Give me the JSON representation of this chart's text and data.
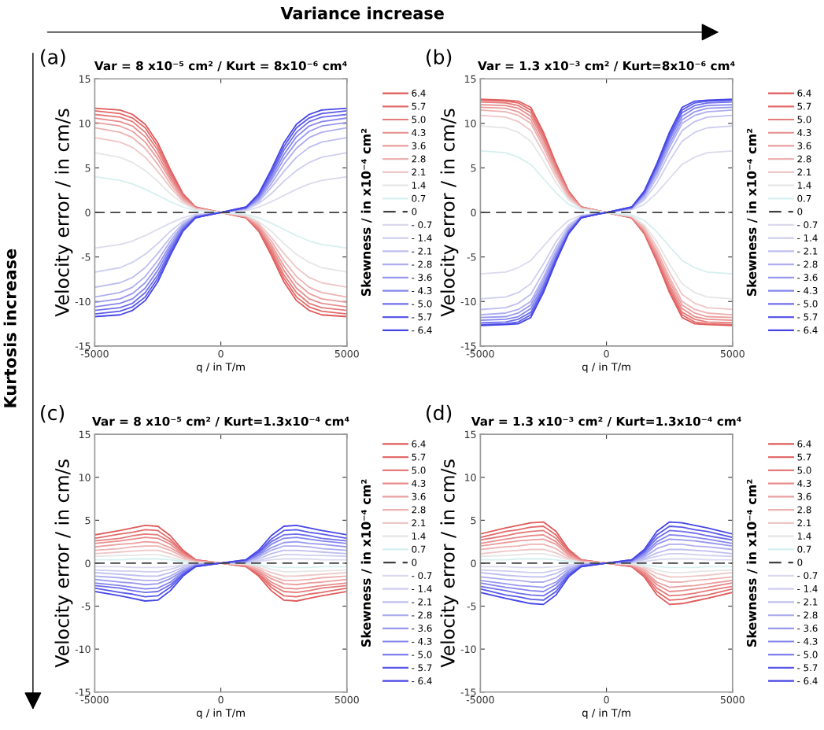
{
  "chart_data": [
    {
      "type": "line",
      "title": "Var = 8 x10⁻⁵ cm² / Kurt = 8x10⁻⁶ cm⁴",
      "xlabel": "q / in T/m",
      "ylabel": "Velocity error / in cm/s",
      "legend_title": "Skewness / in x10⁻⁴ cm²",
      "annotations": [
        "(a)",
        "Variance increase",
        "Kurtosis increase"
      ],
      "xlim": [
        -5000,
        5000
      ],
      "ylim": [
        -15,
        15
      ],
      "xticks": [
        -5000,
        0,
        5000
      ],
      "yticks": [
        -15,
        -10,
        -5,
        0,
        5,
        10,
        15
      ],
      "grid": false,
      "legend": "right",
      "line_style": "solid",
      "marker": "none",
      "x": [
        -5000,
        -4000,
        -3500,
        -3000,
        -2500,
        -2000,
        -1500,
        -1000,
        0,
        1000,
        1500,
        2000,
        2500,
        3000,
        3500,
        4000,
        5000
      ],
      "series": [
        {
          "name": "6.4",
          "color": "#e05a5a",
          "values": [
            11.7,
            11.5,
            11.0,
            9.9,
            7.8,
            4.8,
            2.1,
            0.6,
            0,
            -0.6,
            -2.1,
            -4.8,
            -7.8,
            -9.9,
            -11.0,
            -11.5,
            -11.7
          ]
        },
        {
          "name": "5.7",
          "color": "#e36a6a",
          "values": [
            11.4,
            11.1,
            10.6,
            9.5,
            7.4,
            4.5,
            2.0,
            0.6,
            0,
            -0.6,
            -2.0,
            -4.5,
            -7.4,
            -9.5,
            -10.6,
            -11.1,
            -11.4
          ]
        },
        {
          "name": "5.0",
          "color": "#e57a7a",
          "values": [
            11.0,
            10.7,
            10.2,
            9.0,
            7.0,
            4.2,
            1.8,
            0.5,
            0,
            -0.5,
            -1.8,
            -4.2,
            -7.0,
            -9.0,
            -10.2,
            -10.7,
            -11.0
          ]
        },
        {
          "name": "4.3",
          "color": "#e88c8c",
          "values": [
            10.6,
            10.2,
            9.7,
            8.5,
            6.5,
            3.9,
            1.7,
            0.5,
            0,
            -0.5,
            -1.7,
            -3.9,
            -6.5,
            -8.5,
            -9.7,
            -10.2,
            -10.6
          ]
        },
        {
          "name": "3.6",
          "color": "#eb9e9e",
          "values": [
            10.1,
            9.7,
            9.1,
            7.9,
            6.0,
            3.6,
            1.5,
            0.5,
            0,
            -0.5,
            -1.5,
            -3.6,
            -6.0,
            -7.9,
            -9.1,
            -9.7,
            -10.1
          ]
        },
        {
          "name": "2.8",
          "color": "#eeb2b2",
          "values": [
            9.5,
            9.0,
            8.4,
            7.2,
            5.4,
            3.2,
            1.4,
            0.4,
            0,
            -0.4,
            -1.4,
            -3.2,
            -5.4,
            -7.2,
            -8.4,
            -9.0,
            -9.5
          ]
        },
        {
          "name": "2.1",
          "color": "#efc6c6",
          "values": [
            8.4,
            7.9,
            7.3,
            6.2,
            4.6,
            2.8,
            1.2,
            0.4,
            0,
            -0.4,
            -1.2,
            -2.8,
            -4.6,
            -6.2,
            -7.3,
            -7.9,
            -8.4
          ]
        },
        {
          "name": "1.4",
          "color": "#e6e6e6",
          "values": [
            6.7,
            6.2,
            5.6,
            4.7,
            3.5,
            2.1,
            1.0,
            0.3,
            0,
            -0.3,
            -1.0,
            -2.1,
            -3.5,
            -4.7,
            -5.6,
            -6.2,
            -6.7
          ]
        },
        {
          "name": "0.7",
          "color": "#d6efef",
          "values": [
            4.0,
            3.6,
            3.2,
            2.6,
            1.9,
            1.2,
            0.6,
            0.2,
            0,
            -0.2,
            -0.6,
            -1.2,
            -1.9,
            -2.6,
            -3.2,
            -3.6,
            -4.0
          ]
        },
        {
          "name": "0",
          "color": "#404040",
          "line_style": "dashed",
          "values": [
            0,
            0,
            0,
            0,
            0,
            0,
            0,
            0,
            0,
            0,
            0,
            0,
            0,
            0,
            0,
            0,
            0
          ]
        },
        {
          "name": "- 0.7",
          "color": "#dadaee",
          "values": [
            -4.0,
            -3.6,
            -3.2,
            -2.6,
            -1.9,
            -1.2,
            -0.6,
            -0.2,
            0,
            0.2,
            0.6,
            1.2,
            1.9,
            2.6,
            3.2,
            3.6,
            4.0
          ]
        },
        {
          "name": "- 1.4",
          "color": "#cecef0",
          "values": [
            -6.7,
            -6.2,
            -5.6,
            -4.7,
            -3.5,
            -2.1,
            -1.0,
            -0.3,
            0,
            0.3,
            1.0,
            2.1,
            3.5,
            4.7,
            5.6,
            6.2,
            6.7
          ]
        },
        {
          "name": "- 2.1",
          "color": "#bebef0",
          "values": [
            -8.4,
            -7.9,
            -7.3,
            -6.2,
            -4.6,
            -2.8,
            -1.2,
            -0.4,
            0,
            0.4,
            1.2,
            2.8,
            4.6,
            6.2,
            7.3,
            7.9,
            8.4
          ]
        },
        {
          "name": "- 2.8",
          "color": "#adadf0",
          "values": [
            -9.5,
            -9.0,
            -8.4,
            -7.2,
            -5.4,
            -3.2,
            -1.4,
            -0.4,
            0,
            0.4,
            1.4,
            3.2,
            5.4,
            7.2,
            8.4,
            9.0,
            9.5
          ]
        },
        {
          "name": "- 3.6",
          "color": "#9898ef",
          "values": [
            -10.1,
            -9.7,
            -9.1,
            -7.9,
            -6.0,
            -3.6,
            -1.5,
            -0.5,
            0,
            0.5,
            1.5,
            3.6,
            6.0,
            7.9,
            9.1,
            9.7,
            10.1
          ]
        },
        {
          "name": "- 4.3",
          "color": "#8585ee",
          "values": [
            -10.6,
            -10.2,
            -9.7,
            -8.5,
            -6.5,
            -3.9,
            -1.7,
            -0.5,
            0,
            0.5,
            1.7,
            3.9,
            6.5,
            8.5,
            9.7,
            10.2,
            10.6
          ]
        },
        {
          "name": "- 5.0",
          "color": "#6e6eec",
          "values": [
            -11.0,
            -10.7,
            -10.2,
            -9.0,
            -7.0,
            -4.2,
            -1.8,
            -0.5,
            0,
            0.5,
            1.8,
            4.2,
            7.0,
            9.0,
            10.2,
            10.7,
            11.0
          ]
        },
        {
          "name": "- 5.7",
          "color": "#5959ea",
          "values": [
            -11.4,
            -11.1,
            -10.6,
            -9.5,
            -7.4,
            -4.5,
            -2.0,
            -0.6,
            0,
            0.6,
            2.0,
            4.5,
            7.4,
            9.5,
            10.6,
            11.1,
            11.4
          ]
        },
        {
          "name": "- 6.4",
          "color": "#4545e6",
          "values": [
            -11.7,
            -11.5,
            -11.0,
            -9.9,
            -7.8,
            -4.8,
            -2.1,
            -0.6,
            0,
            0.6,
            2.1,
            4.8,
            7.8,
            9.9,
            11.0,
            11.5,
            11.7
          ]
        }
      ]
    },
    {
      "type": "line",
      "title": "Var = 1.3 x10⁻³ cm² / Kurt=8x10⁻⁶ cm⁴",
      "xlabel": "q / in T/m",
      "ylabel": "Velocity error / in cm/s",
      "legend_title": "Skewness / in x10⁻⁴ cm²",
      "annotations": [
        "(b)"
      ],
      "xlim": [
        -5000,
        5000
      ],
      "ylim": [
        -15,
        15
      ],
      "xticks": [
        -5000,
        0,
        5000
      ],
      "yticks": [
        -15,
        -10,
        -5,
        0,
        5,
        10,
        15
      ],
      "grid": false,
      "legend": "right",
      "line_style": "solid",
      "marker": "none",
      "x": [
        -5000,
        -4000,
        -3500,
        -3000,
        -2500,
        -2000,
        -1500,
        -1000,
        0,
        1000,
        1500,
        2000,
        2500,
        3000,
        3500,
        4000,
        5000
      ],
      "series": [
        {
          "name": "6.4",
          "color": "#e05a5a",
          "values": [
            12.7,
            12.6,
            12.5,
            11.8,
            9.0,
            5.5,
            2.4,
            0.6,
            0,
            -0.6,
            -2.4,
            -5.5,
            -9.0,
            -11.8,
            -12.5,
            -12.6,
            -12.7
          ]
        },
        {
          "name": "5.7",
          "color": "#e36a6a",
          "values": [
            12.6,
            12.5,
            12.3,
            11.5,
            8.7,
            5.3,
            2.3,
            0.6,
            0,
            -0.6,
            -2.3,
            -5.3,
            -8.7,
            -11.5,
            -12.3,
            -12.5,
            -12.6
          ]
        },
        {
          "name": "5.0",
          "color": "#e57a7a",
          "values": [
            12.4,
            12.3,
            12.0,
            11.2,
            8.4,
            5.1,
            2.2,
            0.6,
            0,
            -0.6,
            -2.2,
            -5.1,
            -8.4,
            -11.2,
            -12.0,
            -12.3,
            -12.4
          ]
        },
        {
          "name": "4.3",
          "color": "#e88c8c",
          "values": [
            12.1,
            12.0,
            11.7,
            10.8,
            8.1,
            4.9,
            2.1,
            0.5,
            0,
            -0.5,
            -2.1,
            -4.9,
            -8.1,
            -10.8,
            -11.7,
            -12.0,
            -12.1
          ]
        },
        {
          "name": "3.6",
          "color": "#eb9e9e",
          "values": [
            11.8,
            11.7,
            11.3,
            10.4,
            7.7,
            4.6,
            2.0,
            0.5,
            0,
            -0.5,
            -2.0,
            -4.6,
            -7.7,
            -10.4,
            -11.3,
            -11.7,
            -11.8
          ]
        },
        {
          "name": "2.8",
          "color": "#eeb2b2",
          "values": [
            11.5,
            11.3,
            10.9,
            10.0,
            7.3,
            4.3,
            1.8,
            0.5,
            0,
            -0.5,
            -1.8,
            -4.3,
            -7.3,
            -10.0,
            -10.9,
            -11.3,
            -11.5
          ]
        },
        {
          "name": "2.1",
          "color": "#efc6c6",
          "values": [
            10.9,
            10.7,
            10.2,
            9.2,
            6.7,
            3.9,
            1.6,
            0.4,
            0,
            -0.4,
            -1.6,
            -3.9,
            -6.7,
            -9.2,
            -10.2,
            -10.7,
            -10.9
          ]
        },
        {
          "name": "1.4",
          "color": "#e6e6e6",
          "values": [
            9.7,
            9.5,
            9.0,
            8.0,
            5.8,
            3.3,
            1.4,
            0.4,
            0,
            -0.4,
            -1.4,
            -3.3,
            -5.8,
            -8.0,
            -9.0,
            -9.5,
            -9.7
          ]
        },
        {
          "name": "0.7",
          "color": "#d6efef",
          "values": [
            6.9,
            6.7,
            6.2,
            5.4,
            3.8,
            2.2,
            0.9,
            0.3,
            0,
            -0.3,
            -0.9,
            -2.2,
            -3.8,
            -5.4,
            -6.2,
            -6.7,
            -6.9
          ]
        },
        {
          "name": "0",
          "color": "#404040",
          "line_style": "dashed",
          "values": [
            0,
            0,
            0,
            0,
            0,
            0,
            0,
            0,
            0,
            0,
            0,
            0,
            0,
            0,
            0,
            0,
            0
          ]
        },
        {
          "name": "- 0.7",
          "color": "#dadaee",
          "values": [
            -6.9,
            -6.7,
            -6.2,
            -5.4,
            -3.8,
            -2.2,
            -0.9,
            -0.3,
            0,
            0.3,
            0.9,
            2.2,
            3.8,
            5.4,
            6.2,
            6.7,
            6.9
          ]
        },
        {
          "name": "- 1.4",
          "color": "#cecef0",
          "values": [
            -9.7,
            -9.5,
            -9.0,
            -8.0,
            -5.8,
            -3.3,
            -1.4,
            -0.4,
            0,
            0.4,
            1.4,
            3.3,
            5.8,
            8.0,
            9.0,
            9.5,
            9.7
          ]
        },
        {
          "name": "- 2.1",
          "color": "#bebef0",
          "values": [
            -10.9,
            -10.7,
            -10.2,
            -9.2,
            -6.7,
            -3.9,
            -1.6,
            -0.4,
            0,
            0.4,
            1.6,
            3.9,
            6.7,
            9.2,
            10.2,
            10.7,
            10.9
          ]
        },
        {
          "name": "- 2.8",
          "color": "#adadf0",
          "values": [
            -11.5,
            -11.3,
            -10.9,
            -10.0,
            -7.3,
            -4.3,
            -1.8,
            -0.5,
            0,
            0.5,
            1.8,
            4.3,
            7.3,
            10.0,
            10.9,
            11.3,
            11.5
          ]
        },
        {
          "name": "- 3.6",
          "color": "#9898ef",
          "values": [
            -11.8,
            -11.7,
            -11.3,
            -10.4,
            -7.7,
            -4.6,
            -2.0,
            -0.5,
            0,
            0.5,
            2.0,
            4.6,
            7.7,
            10.4,
            11.3,
            11.7,
            11.8
          ]
        },
        {
          "name": "- 4.3",
          "color": "#8585ee",
          "values": [
            -12.1,
            -12.0,
            -11.7,
            -10.8,
            -8.1,
            -4.9,
            -2.1,
            -0.5,
            0,
            0.5,
            2.1,
            4.9,
            8.1,
            10.8,
            11.7,
            12.0,
            12.1
          ]
        },
        {
          "name": "- 5.0",
          "color": "#6e6eec",
          "values": [
            -12.4,
            -12.3,
            -12.0,
            -11.2,
            -8.4,
            -5.1,
            -2.2,
            -0.6,
            0,
            0.6,
            2.2,
            5.1,
            8.4,
            11.2,
            12.0,
            12.3,
            12.4
          ]
        },
        {
          "name": "- 5.7",
          "color": "#5959ea",
          "values": [
            -12.6,
            -12.5,
            -12.3,
            -11.5,
            -8.7,
            -5.3,
            -2.3,
            -0.6,
            0,
            0.6,
            2.3,
            5.3,
            8.7,
            11.5,
            12.3,
            12.5,
            12.6
          ]
        },
        {
          "name": "- 6.4",
          "color": "#4545e6",
          "values": [
            -12.7,
            -12.6,
            -12.5,
            -11.8,
            -9.0,
            -5.5,
            -2.4,
            -0.6,
            0,
            0.6,
            2.4,
            5.5,
            9.0,
            11.8,
            12.5,
            12.6,
            12.7
          ]
        }
      ]
    },
    {
      "type": "line",
      "title": "Var = 8 x10⁻⁵ cm² / Kurt=1.3x10⁻⁴ cm⁴",
      "xlabel": "q / in T/m",
      "ylabel": "Velocity error / in cm/s",
      "legend_title": "Skewness / in x10⁻⁴ cm²",
      "annotations": [
        "(c)"
      ],
      "xlim": [
        -5000,
        5000
      ],
      "ylim": [
        -15,
        15
      ],
      "xticks": [
        -5000,
        0,
        5000
      ],
      "yticks": [
        -15,
        -10,
        -5,
        0,
        5,
        10,
        15
      ],
      "grid": false,
      "legend": "right",
      "line_style": "solid",
      "marker": "none",
      "x": [
        -5000,
        -4000,
        -3500,
        -3000,
        -2500,
        -2000,
        -1500,
        -1000,
        0,
        1000,
        1500,
        2000,
        2500,
        3000,
        3500,
        4000,
        5000
      ],
      "series": [
        {
          "name": "6.4",
          "color": "#e05a5a",
          "values": [
            3.3,
            3.8,
            4.1,
            4.4,
            4.3,
            3.2,
            1.5,
            0.4,
            0,
            -0.4,
            -1.5,
            -3.2,
            -4.3,
            -4.4,
            -4.1,
            -3.8,
            -3.3
          ]
        },
        {
          "name": "5.7",
          "color": "#e36a6a",
          "values": [
            2.9,
            3.4,
            3.6,
            3.9,
            3.8,
            2.8,
            1.3,
            0.4,
            0,
            -0.4,
            -1.3,
            -2.8,
            -3.8,
            -3.9,
            -3.6,
            -3.4,
            -2.9
          ]
        },
        {
          "name": "5.0",
          "color": "#e57a7a",
          "values": [
            2.6,
            2.9,
            3.2,
            3.4,
            3.3,
            2.5,
            1.2,
            0.3,
            0,
            -0.3,
            -1.2,
            -2.5,
            -3.3,
            -3.4,
            -3.2,
            -2.9,
            -2.6
          ]
        },
        {
          "name": "4.3",
          "color": "#e88c8c",
          "values": [
            2.3,
            2.6,
            2.8,
            3.0,
            2.9,
            2.2,
            1.0,
            0.3,
            0,
            -0.3,
            -1.0,
            -2.2,
            -2.9,
            -3.0,
            -2.8,
            -2.6,
            -2.3
          ]
        },
        {
          "name": "3.6",
          "color": "#eb9e9e",
          "values": [
            1.9,
            2.2,
            2.3,
            2.5,
            2.4,
            1.8,
            0.9,
            0.2,
            0,
            -0.2,
            -0.9,
            -1.8,
            -2.4,
            -2.5,
            -2.3,
            -2.2,
            -1.9
          ]
        },
        {
          "name": "2.8",
          "color": "#eeb2b2",
          "values": [
            1.5,
            1.7,
            1.9,
            2.0,
            2.0,
            1.5,
            0.7,
            0.2,
            0,
            -0.2,
            -0.7,
            -1.5,
            -2.0,
            -2.0,
            -1.9,
            -1.7,
            -1.5
          ]
        },
        {
          "name": "2.1",
          "color": "#efc6c6",
          "values": [
            1.1,
            1.3,
            1.4,
            1.5,
            1.5,
            1.1,
            0.5,
            0.1,
            0,
            -0.1,
            -0.5,
            -1.1,
            -1.5,
            -1.5,
            -1.4,
            -1.3,
            -1.1
          ]
        },
        {
          "name": "1.4",
          "color": "#e6e6e6",
          "values": [
            0.8,
            0.9,
            0.9,
            1.0,
            1.0,
            0.7,
            0.3,
            0.1,
            0,
            -0.1,
            -0.3,
            -0.7,
            -1.0,
            -1.0,
            -0.9,
            -0.9,
            -0.8
          ]
        },
        {
          "name": "0.7",
          "color": "#d6efef",
          "values": [
            0.4,
            0.4,
            0.5,
            0.5,
            0.5,
            0.4,
            0.2,
            0,
            0,
            0,
            -0.2,
            -0.4,
            -0.5,
            -0.5,
            -0.5,
            -0.4,
            -0.4
          ]
        },
        {
          "name": "0",
          "color": "#404040",
          "line_style": "dashed",
          "values": [
            0,
            0,
            0,
            0,
            0,
            0,
            0,
            0,
            0,
            0,
            0,
            0,
            0,
            0,
            0,
            0,
            0
          ]
        },
        {
          "name": "- 0.7",
          "color": "#dadaee",
          "values": [
            -0.4,
            -0.4,
            -0.5,
            -0.5,
            -0.5,
            -0.4,
            -0.2,
            0,
            0,
            0,
            0.2,
            0.4,
            0.5,
            0.5,
            0.5,
            0.4,
            0.4
          ]
        },
        {
          "name": "- 1.4",
          "color": "#cecef0",
          "values": [
            -0.8,
            -0.9,
            -0.9,
            -1.0,
            -1.0,
            -0.7,
            -0.3,
            -0.1,
            0,
            0.1,
            0.3,
            0.7,
            1.0,
            1.0,
            0.9,
            0.9,
            0.8
          ]
        },
        {
          "name": "- 2.1",
          "color": "#bebef0",
          "values": [
            -1.1,
            -1.3,
            -1.4,
            -1.5,
            -1.5,
            -1.1,
            -0.5,
            -0.1,
            0,
            0.1,
            0.5,
            1.1,
            1.5,
            1.5,
            1.4,
            1.3,
            1.1
          ]
        },
        {
          "name": "- 2.8",
          "color": "#adadf0",
          "values": [
            -1.5,
            -1.7,
            -1.9,
            -2.0,
            -2.0,
            -1.5,
            -0.7,
            -0.2,
            0,
            0.2,
            0.7,
            1.5,
            2.0,
            2.0,
            1.9,
            1.7,
            1.5
          ]
        },
        {
          "name": "- 3.6",
          "color": "#9898ef",
          "values": [
            -1.9,
            -2.2,
            -2.3,
            -2.5,
            -2.4,
            -1.8,
            -0.9,
            -0.2,
            0,
            0.2,
            0.9,
            1.8,
            2.4,
            2.5,
            2.3,
            2.2,
            1.9
          ]
        },
        {
          "name": "- 4.3",
          "color": "#8585ee",
          "values": [
            -2.3,
            -2.6,
            -2.8,
            -3.0,
            -2.9,
            -2.2,
            -1.0,
            -0.3,
            0,
            0.3,
            1.0,
            2.2,
            2.9,
            3.0,
            2.8,
            2.6,
            2.3
          ]
        },
        {
          "name": "- 5.0",
          "color": "#6e6eec",
          "values": [
            -2.6,
            -2.9,
            -3.2,
            -3.4,
            -3.3,
            -2.5,
            -1.2,
            -0.3,
            0,
            0.3,
            1.2,
            2.5,
            3.3,
            3.4,
            3.2,
            2.9,
            2.6
          ]
        },
        {
          "name": "- 5.7",
          "color": "#5959ea",
          "values": [
            -2.9,
            -3.4,
            -3.6,
            -3.9,
            -3.8,
            -2.8,
            -1.3,
            -0.4,
            0,
            0.4,
            1.3,
            2.8,
            3.8,
            3.9,
            3.6,
            3.4,
            2.9
          ]
        },
        {
          "name": "- 6.4",
          "color": "#4545e6",
          "values": [
            -3.3,
            -3.8,
            -4.1,
            -4.4,
            -4.3,
            -3.2,
            -1.5,
            -0.4,
            0,
            0.4,
            1.5,
            3.2,
            4.3,
            4.4,
            4.1,
            3.8,
            3.3
          ]
        }
      ]
    },
    {
      "type": "line",
      "title": "Var = 1.3 x10⁻³ cm² / Kurt=1.3x10⁻⁴ cm⁴",
      "xlabel": "q / in T/m",
      "ylabel": "Velocity error / in cm/s",
      "legend_title": "Skewness / in x10⁻⁴ cm²",
      "annotations": [
        "(d)"
      ],
      "xlim": [
        -5000,
        5000
      ],
      "ylim": [
        -15,
        15
      ],
      "xticks": [
        -5000,
        0,
        5000
      ],
      "yticks": [
        -15,
        -10,
        -5,
        0,
        5,
        10,
        15
      ],
      "grid": false,
      "legend": "right",
      "line_style": "solid",
      "marker": "none",
      "x": [
        -5000,
        -4000,
        -3500,
        -3000,
        -2500,
        -2000,
        -1500,
        -1000,
        0,
        1000,
        1500,
        2000,
        2500,
        3000,
        3500,
        4000,
        5000
      ],
      "series": [
        {
          "name": "6.4",
          "color": "#e05a5a",
          "values": [
            3.4,
            4.1,
            4.4,
            4.7,
            4.8,
            3.7,
            1.6,
            0.4,
            0,
            -0.4,
            -1.6,
            -3.7,
            -4.8,
            -4.7,
            -4.4,
            -4.1,
            -3.4
          ]
        },
        {
          "name": "5.7",
          "color": "#e36a6a",
          "values": [
            3.0,
            3.7,
            3.9,
            4.2,
            4.3,
            3.3,
            1.4,
            0.4,
            0,
            -0.4,
            -1.4,
            -3.3,
            -4.3,
            -4.2,
            -3.9,
            -3.7,
            -3.0
          ]
        },
        {
          "name": "5.0",
          "color": "#e57a7a",
          "values": [
            2.7,
            3.2,
            3.5,
            3.7,
            3.8,
            2.9,
            1.3,
            0.3,
            0,
            -0.3,
            -1.3,
            -2.9,
            -3.8,
            -3.7,
            -3.5,
            -3.2,
            -2.7
          ]
        },
        {
          "name": "4.3",
          "color": "#e88c8c",
          "values": [
            2.3,
            2.8,
            3.0,
            3.2,
            3.3,
            2.5,
            1.1,
            0.3,
            0,
            -0.3,
            -1.1,
            -2.5,
            -3.3,
            -3.2,
            -3.0,
            -2.8,
            -2.3
          ]
        },
        {
          "name": "3.6",
          "color": "#eb9e9e",
          "values": [
            2.0,
            2.4,
            2.6,
            2.7,
            2.8,
            2.2,
            0.9,
            0.2,
            0,
            -0.2,
            -0.9,
            -2.2,
            -2.8,
            -2.7,
            -2.6,
            -2.4,
            -2.0
          ]
        },
        {
          "name": "2.8",
          "color": "#eeb2b2",
          "values": [
            1.6,
            1.9,
            2.0,
            2.2,
            2.2,
            1.7,
            0.7,
            0.2,
            0,
            -0.2,
            -0.7,
            -1.7,
            -2.2,
            -2.2,
            -2.0,
            -1.9,
            -1.6
          ]
        },
        {
          "name": "2.1",
          "color": "#efc6c6",
          "values": [
            1.1,
            1.4,
            1.5,
            1.6,
            1.6,
            1.2,
            0.5,
            0.1,
            0,
            -0.1,
            -0.5,
            -1.2,
            -1.6,
            -1.6,
            -1.5,
            -1.4,
            -1.1
          ]
        },
        {
          "name": "1.4",
          "color": "#e6e6e6",
          "values": [
            0.8,
            0.9,
            1.0,
            1.1,
            1.1,
            0.8,
            0.4,
            0.1,
            0,
            -0.1,
            -0.4,
            -0.8,
            -1.1,
            -1.1,
            -1.0,
            -0.9,
            -0.8
          ]
        },
        {
          "name": "0.7",
          "color": "#d6efef",
          "values": [
            0.4,
            0.4,
            0.5,
            0.5,
            0.5,
            0.4,
            0.2,
            0,
            0,
            0,
            -0.2,
            -0.4,
            -0.5,
            -0.5,
            -0.5,
            -0.4,
            -0.4
          ]
        },
        {
          "name": "0",
          "color": "#404040",
          "line_style": "dashed",
          "values": [
            0,
            0,
            0,
            0,
            0,
            0,
            0,
            0,
            0,
            0,
            0,
            0,
            0,
            0,
            0,
            0,
            0
          ]
        },
        {
          "name": "- 0.7",
          "color": "#dadaee",
          "values": [
            -0.4,
            -0.4,
            -0.5,
            -0.5,
            -0.5,
            -0.4,
            -0.2,
            0,
            0,
            0,
            0.2,
            0.4,
            0.5,
            0.5,
            0.5,
            0.4,
            0.4
          ]
        },
        {
          "name": "- 1.4",
          "color": "#cecef0",
          "values": [
            -0.8,
            -0.9,
            -1.0,
            -1.1,
            -1.1,
            -0.8,
            -0.4,
            -0.1,
            0,
            0.1,
            0.4,
            0.8,
            1.1,
            1.1,
            1.0,
            0.9,
            0.8
          ]
        },
        {
          "name": "- 2.1",
          "color": "#bebef0",
          "values": [
            -1.1,
            -1.4,
            -1.5,
            -1.6,
            -1.6,
            -1.2,
            -0.5,
            -0.1,
            0,
            0.1,
            0.5,
            1.2,
            1.6,
            1.6,
            1.5,
            1.4,
            1.1
          ]
        },
        {
          "name": "- 2.8",
          "color": "#adadf0",
          "values": [
            -1.6,
            -1.9,
            -2.0,
            -2.2,
            -2.2,
            -1.7,
            -0.7,
            -0.2,
            0,
            0.2,
            0.7,
            1.7,
            2.2,
            2.2,
            2.0,
            1.9,
            1.6
          ]
        },
        {
          "name": "- 3.6",
          "color": "#9898ef",
          "values": [
            -2.0,
            -2.4,
            -2.6,
            -2.7,
            -2.8,
            -2.2,
            -0.9,
            -0.2,
            0,
            0.2,
            0.9,
            2.2,
            2.8,
            2.7,
            2.6,
            2.4,
            2.0
          ]
        },
        {
          "name": "- 4.3",
          "color": "#8585ee",
          "values": [
            -2.3,
            -2.8,
            -3.0,
            -3.2,
            -3.3,
            -2.5,
            -1.1,
            -0.3,
            0,
            0.3,
            1.1,
            2.5,
            3.3,
            3.2,
            3.0,
            2.8,
            2.3
          ]
        },
        {
          "name": "- 5.0",
          "color": "#6e6eec",
          "values": [
            -2.7,
            -3.2,
            -3.5,
            -3.7,
            -3.8,
            -2.9,
            -1.3,
            -0.3,
            0,
            0.3,
            1.3,
            2.9,
            3.8,
            3.7,
            3.5,
            3.2,
            2.7
          ]
        },
        {
          "name": "- 5.7",
          "color": "#5959ea",
          "values": [
            -3.0,
            -3.7,
            -3.9,
            -4.2,
            -4.3,
            -3.3,
            -1.4,
            -0.4,
            0,
            0.4,
            1.4,
            3.3,
            4.3,
            4.2,
            3.9,
            3.7,
            3.0
          ]
        },
        {
          "name": "- 6.4",
          "color": "#4545e6",
          "values": [
            -3.4,
            -4.1,
            -4.4,
            -4.7,
            -4.8,
            -3.7,
            -1.6,
            -0.4,
            0,
            0.4,
            1.6,
            3.7,
            4.8,
            4.7,
            4.4,
            4.1,
            3.4
          ]
        }
      ]
    }
  ]
}
